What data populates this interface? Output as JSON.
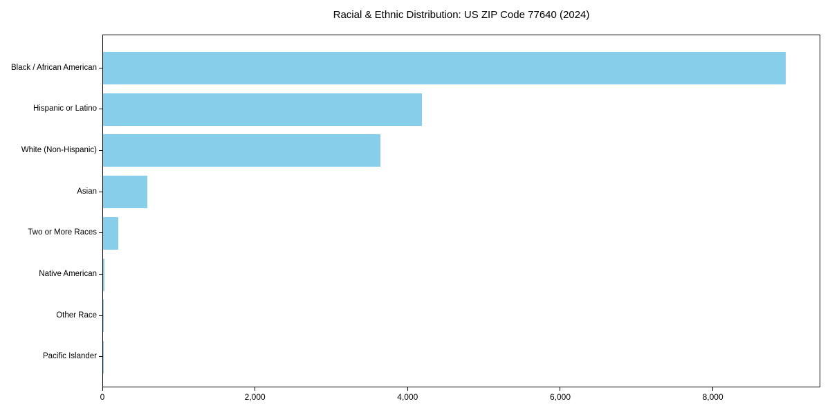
{
  "figure": {
    "background": "#ffffff"
  },
  "chart_data": {
    "type": "bar",
    "orientation": "horizontal",
    "title": "Racial & Ethnic Distribution: US ZIP Code 77640 (2024)",
    "categories": [
      "Black / African American",
      "Hispanic or Latino",
      "White (Non-Hispanic)",
      "Asian",
      "Two or More Races",
      "Native American",
      "Other Race",
      "Pacific Islander"
    ],
    "values": [
      8960,
      4190,
      3640,
      585,
      200,
      20,
      8,
      3
    ],
    "xlabel": "",
    "ylabel": "",
    "xlim": [
      0,
      9408
    ],
    "x_ticks": [
      0,
      2000,
      4000,
      6000,
      8000
    ],
    "x_tick_labels": [
      "0",
      "2,000",
      "4,000",
      "6,000",
      "8,000"
    ],
    "bar_color": "#87CEEB",
    "axis_color": "#000000",
    "text_color": "#000000",
    "grid": false,
    "legend": false
  }
}
